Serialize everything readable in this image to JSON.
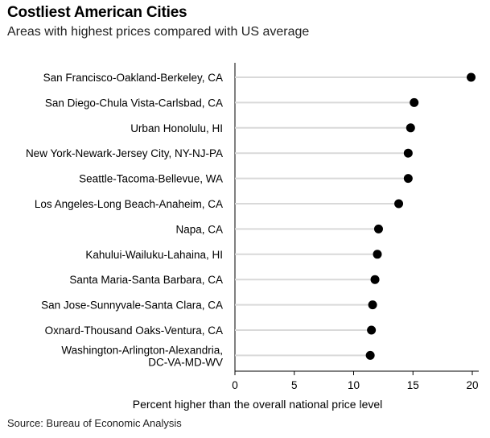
{
  "header": {
    "title": "Costliest American Cities",
    "subtitle": "Areas with highest prices compared with US average"
  },
  "footer": {
    "source": "Source: Bureau of Economic Analysis"
  },
  "colors": {
    "dot": "#000000",
    "stem": "#d9d9d9",
    "axis": "#000000",
    "text": "#000000"
  },
  "chart_data": {
    "type": "scatter",
    "style": "dot-plot",
    "title": "Costliest American Cities",
    "subtitle": "Areas with highest prices compared with US average",
    "xlabel": "Percent higher than the overall national price level",
    "ylabel": "",
    "xlim": [
      0,
      20
    ],
    "xticks": [
      0,
      5,
      10,
      15,
      20
    ],
    "grid": false,
    "legend": "none",
    "categories": [
      "San Francisco-Oakland-Berkeley, CA",
      "San Diego-Chula Vista-Carlsbad, CA",
      "Urban Honolulu, HI",
      "New York-Newark-Jersey City, NY-NJ-PA",
      "Seattle-Tacoma-Bellevue, WA",
      "Los Angeles-Long Beach-Anaheim, CA",
      "Napa, CA",
      "Kahului-Wailuku-Lahaina, HI",
      "Santa Maria-Santa Barbara, CA",
      "San Jose-Sunnyvale-Santa Clara, CA",
      "Oxnard-Thousand Oaks-Ventura, CA",
      [
        "Washington-Arlington-Alexandria,",
        "DC-VA-MD-WV"
      ]
    ],
    "values": [
      19.9,
      15.1,
      14.8,
      14.6,
      14.6,
      13.8,
      12.1,
      12.0,
      11.8,
      11.6,
      11.5,
      11.4
    ]
  }
}
